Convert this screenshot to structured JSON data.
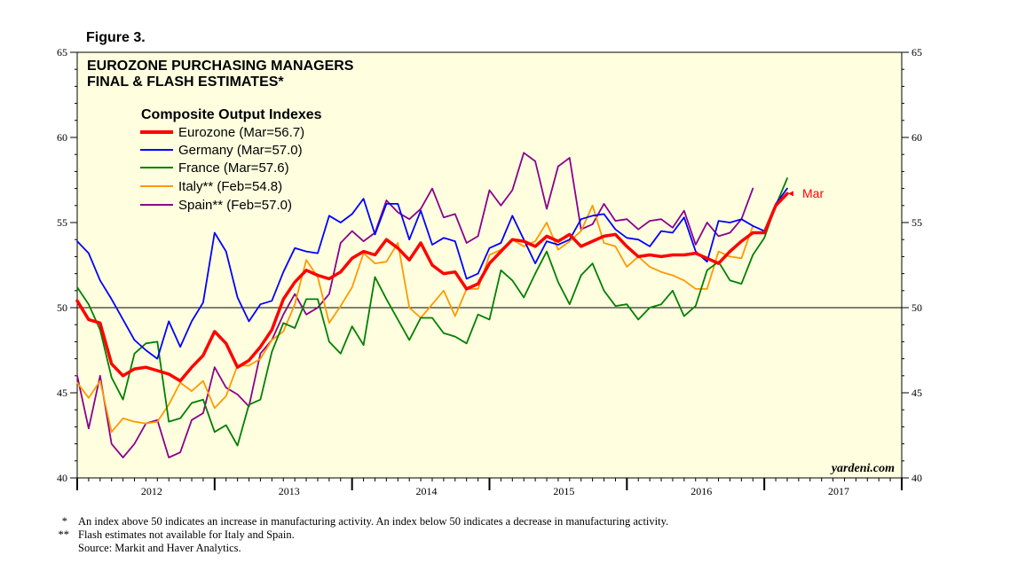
{
  "figure_label": "Figure 3.",
  "chart_data": {
    "type": "line",
    "title": "EUROZONE PURCHASING MANAGERS",
    "subtitle": "FINAL & FLASH ESTIMATES*",
    "legend_title": "Composite Output Indexes",
    "legend_placement": "top-left",
    "ylim": [
      40,
      65
    ],
    "yticks": [
      40,
      45,
      50,
      55,
      60,
      65
    ],
    "reference_line": 50,
    "x_start": "2011-12",
    "x_end": "2017-12",
    "years": [
      "2012",
      "2013",
      "2014",
      "2015",
      "2016",
      "2017"
    ],
    "colors": {
      "background": "#ffffe0",
      "eurozone": "#ff0000",
      "germany": "#0000ff",
      "france": "#008000",
      "italy": "#ff9900",
      "spain": "#8b008b"
    },
    "end_label": "Mar",
    "series": [
      {
        "key": "eurozone",
        "name": "Eurozone (Mar=56.7)",
        "start_month": 0,
        "values": [
          50.4,
          49.3,
          49.1,
          46.7,
          46.0,
          46.4,
          46.5,
          46.3,
          46.1,
          45.7,
          46.5,
          47.2,
          48.6,
          47.9,
          46.5,
          46.9,
          47.7,
          48.7,
          50.5,
          51.5,
          52.2,
          51.9,
          51.7,
          52.1,
          52.9,
          53.3,
          53.1,
          54.0,
          53.5,
          52.8,
          53.8,
          52.5,
          52.0,
          52.1,
          51.1,
          51.4,
          52.6,
          53.3,
          54.0,
          53.9,
          53.6,
          54.2,
          53.9,
          54.3,
          53.6,
          53.9,
          54.2,
          54.3,
          53.6,
          53.0,
          53.1,
          53.0,
          53.1,
          53.1,
          53.2,
          52.9,
          52.6,
          53.3,
          53.9,
          54.4,
          54.4,
          56.0,
          56.7
        ]
      },
      {
        "key": "germany",
        "name": "Germany (Mar=57.0)",
        "start_month": 0,
        "values": [
          53.9,
          53.2,
          51.6,
          50.5,
          49.3,
          48.1,
          47.5,
          47.0,
          49.2,
          47.7,
          49.2,
          50.3,
          54.4,
          53.3,
          50.6,
          49.2,
          50.2,
          50.4,
          52.1,
          53.5,
          53.3,
          53.2,
          55.4,
          55.0,
          55.5,
          56.4,
          54.3,
          56.1,
          56.1,
          54.0,
          55.7,
          53.7,
          54.1,
          53.9,
          51.7,
          52.0,
          53.5,
          53.8,
          55.4,
          54.0,
          52.6,
          53.9,
          53.7,
          54.0,
          55.2,
          55.4,
          55.5,
          54.6,
          54.1,
          54.0,
          53.6,
          54.5,
          54.4,
          55.3,
          53.3,
          52.7,
          55.1,
          55.0,
          55.2,
          54.8,
          54.5,
          56.1,
          57.0
        ]
      },
      {
        "key": "france",
        "name": "France (Mar=57.6)",
        "start_month": 0,
        "values": [
          51.2,
          50.2,
          48.7,
          45.9,
          44.6,
          47.3,
          47.9,
          48.0,
          43.3,
          43.5,
          44.4,
          44.6,
          42.7,
          43.1,
          41.9,
          44.3,
          44.6,
          47.4,
          49.1,
          48.8,
          50.5,
          50.5,
          48.0,
          47.3,
          48.9,
          47.8,
          51.8,
          50.5,
          49.3,
          48.1,
          49.4,
          49.4,
          48.5,
          48.3,
          47.9,
          49.6,
          49.3,
          52.2,
          51.6,
          50.6,
          52.0,
          53.3,
          51.5,
          50.2,
          51.9,
          52.6,
          51.0,
          50.1,
          50.2,
          49.3,
          50.0,
          50.2,
          51.0,
          49.5,
          50.1,
          52.2,
          52.7,
          51.6,
          51.4,
          53.1,
          54.1,
          56.0,
          57.6
        ]
      },
      {
        "key": "italy",
        "name": "Italy** (Feb=54.8)",
        "start_month": 0,
        "values": [
          45.6,
          44.7,
          45.7,
          42.7,
          43.5,
          43.3,
          43.2,
          43.3,
          44.3,
          45.6,
          45.1,
          45.7,
          44.1,
          44.8,
          46.6,
          46.6,
          47.0,
          48.1,
          48.6,
          50.2,
          52.8,
          51.8,
          49.1,
          50.1,
          51.2,
          53.2,
          52.6,
          52.7,
          53.8,
          50.0,
          49.4,
          50.2,
          51.0,
          49.5,
          51.1,
          51.1,
          53.1,
          53.4,
          54.0,
          53.6,
          53.9,
          55.0,
          53.4,
          53.9,
          54.5,
          56.0,
          53.8,
          53.6,
          52.4,
          53.0,
          52.4,
          52.1,
          51.9,
          51.6,
          51.1,
          51.1,
          53.3,
          53.0,
          52.9,
          54.8
        ]
      },
      {
        "key": "spain",
        "name": "Spain** (Feb=57.0)",
        "start_month": 0,
        "values": [
          46.0,
          42.9,
          46.0,
          42.0,
          41.2,
          42.0,
          43.2,
          43.4,
          41.2,
          41.5,
          43.4,
          43.8,
          46.5,
          45.3,
          44.9,
          44.2,
          47.3,
          48.1,
          49.6,
          50.8,
          49.6,
          50.0,
          50.8,
          53.8,
          54.5,
          53.9,
          54.4,
          56.3,
          55.6,
          55.2,
          55.8,
          57.0,
          55.3,
          55.5,
          53.8,
          54.2,
          56.9,
          56.0,
          56.9,
          59.1,
          58.6,
          55.8,
          58.3,
          58.8,
          54.6,
          54.9,
          56.1,
          55.1,
          55.2,
          54.6,
          55.1,
          55.2,
          54.7,
          55.7,
          53.7,
          55.0,
          54.2,
          54.4,
          55.2,
          57.0
        ]
      }
    ]
  },
  "watermark": "yardeni.com",
  "footnotes": [
    {
      "mark": "*",
      "text": "An index above 50 indicates an increase in manufacturing activity. An index below 50 indicates a decrease in manufacturing activity."
    },
    {
      "mark": "**",
      "text": "Flash estimates not available for Italy and Spain."
    },
    {
      "mark": "",
      "text": "Source: Markit and Haver Analytics."
    }
  ]
}
